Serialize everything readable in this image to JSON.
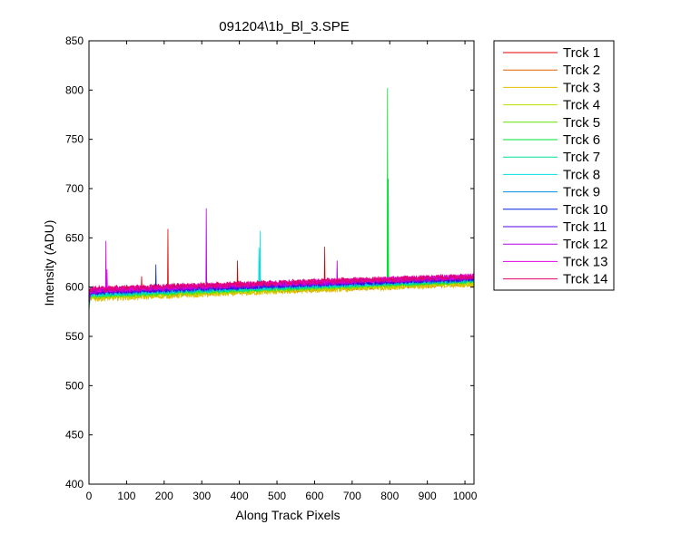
{
  "chart_data": {
    "type": "line",
    "title": "091204\\1b_Bl_3.SPE",
    "xlabel": "Along Track Pixels",
    "ylabel": "Intensity (ADU)",
    "xlim": [
      0,
      1024
    ],
    "ylim": [
      400,
      850
    ],
    "xticks": [
      0,
      100,
      200,
      300,
      400,
      500,
      600,
      700,
      800,
      900,
      1000
    ],
    "yticks": [
      400,
      450,
      500,
      550,
      600,
      650,
      700,
      750,
      800,
      850
    ],
    "grid": false,
    "legend_position": "outside-right",
    "series": [
      {
        "name": "Trck 1",
        "color": "#e00000",
        "start": 597,
        "end": 610,
        "spikes": [
          [
            210,
            659
          ],
          [
            627,
            641
          ],
          [
            395,
            627
          ],
          [
            140,
            611
          ]
        ]
      },
      {
        "name": "Trck 2",
        "color": "#e06000",
        "start": 590,
        "end": 604,
        "spikes": []
      },
      {
        "name": "Trck 3",
        "color": "#e0c000",
        "start": 588,
        "end": 603,
        "spikes": []
      },
      {
        "name": "Trck 4",
        "color": "#b8e000",
        "start": 590,
        "end": 605,
        "spikes": []
      },
      {
        "name": "Trck 5",
        "color": "#60e000",
        "start": 591,
        "end": 606,
        "spikes": []
      },
      {
        "name": "Trck 6",
        "color": "#00e030",
        "start": 593,
        "end": 607,
        "spikes": [
          [
            794,
            802
          ],
          [
            796,
            710
          ]
        ]
      },
      {
        "name": "Trck 7",
        "color": "#00e0a0",
        "start": 592,
        "end": 607,
        "spikes": []
      },
      {
        "name": "Trck 8",
        "color": "#00e0e0",
        "start": 593,
        "end": 608,
        "spikes": [
          [
            455,
            657
          ],
          [
            452,
            640
          ]
        ]
      },
      {
        "name": "Trck 9",
        "color": "#0090e0",
        "start": 594,
        "end": 608,
        "spikes": []
      },
      {
        "name": "Trck 10",
        "color": "#0020e0",
        "start": 595,
        "end": 609,
        "spikes": [
          [
            178,
            623
          ]
        ]
      },
      {
        "name": "Trck 11",
        "color": "#5000e0",
        "start": 595,
        "end": 609,
        "spikes": []
      },
      {
        "name": "Trck 12",
        "color": "#b000e0",
        "start": 596,
        "end": 610,
        "spikes": [
          [
            312,
            680
          ],
          [
            660,
            627
          ],
          [
            48,
            618
          ]
        ]
      },
      {
        "name": "Trck 13",
        "color": "#e000e0",
        "start": 597,
        "end": 611,
        "spikes": [
          [
            45,
            647
          ]
        ]
      },
      {
        "name": "Trck 14",
        "color": "#e00070",
        "start": 598,
        "end": 611,
        "spikes": []
      }
    ]
  }
}
